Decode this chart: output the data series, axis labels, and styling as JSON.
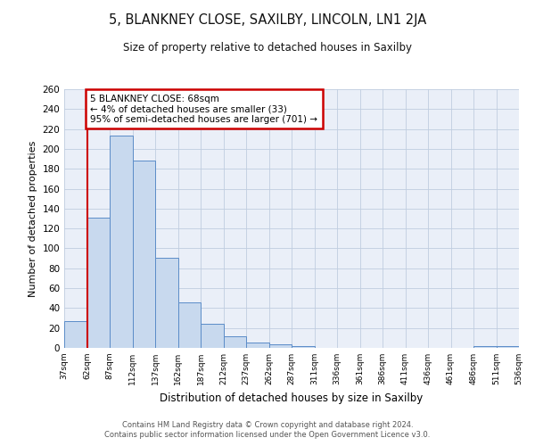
{
  "title": "5, BLANKNEY CLOSE, SAXILBY, LINCOLN, LN1 2JA",
  "subtitle": "Size of property relative to detached houses in Saxilby",
  "xlabel": "Distribution of detached houses by size in Saxilby",
  "ylabel": "Number of detached properties",
  "bar_values": [
    27,
    131,
    213,
    188,
    91,
    46,
    24,
    12,
    5,
    4,
    2,
    0,
    0,
    0,
    0,
    0,
    0,
    0,
    2,
    2
  ],
  "bin_labels": [
    "37sqm",
    "62sqm",
    "87sqm",
    "112sqm",
    "137sqm",
    "162sqm",
    "187sqm",
    "212sqm",
    "237sqm",
    "262sqm",
    "287sqm",
    "311sqm",
    "336sqm",
    "361sqm",
    "386sqm",
    "411sqm",
    "436sqm",
    "461sqm",
    "486sqm",
    "511sqm",
    "536sqm"
  ],
  "bar_color": "#c8d9ee",
  "bar_edge_color": "#5b8cc8",
  "grid_color": "#c0cde0",
  "bg_color": "#eaeff8",
  "annotation_text": "5 BLANKNEY CLOSE: 68sqm\n← 4% of detached houses are smaller (33)\n95% of semi-detached houses are larger (701) →",
  "annotation_box_color": "#ffffff",
  "annotation_box_edge": "#cc0000",
  "vline_x": 1.0,
  "ylim": [
    0,
    260
  ],
  "yticks": [
    0,
    20,
    40,
    60,
    80,
    100,
    120,
    140,
    160,
    180,
    200,
    220,
    240,
    260
  ],
  "footnote1": "Contains HM Land Registry data © Crown copyright and database right 2024.",
  "footnote2": "Contains public sector information licensed under the Open Government Licence v3.0."
}
